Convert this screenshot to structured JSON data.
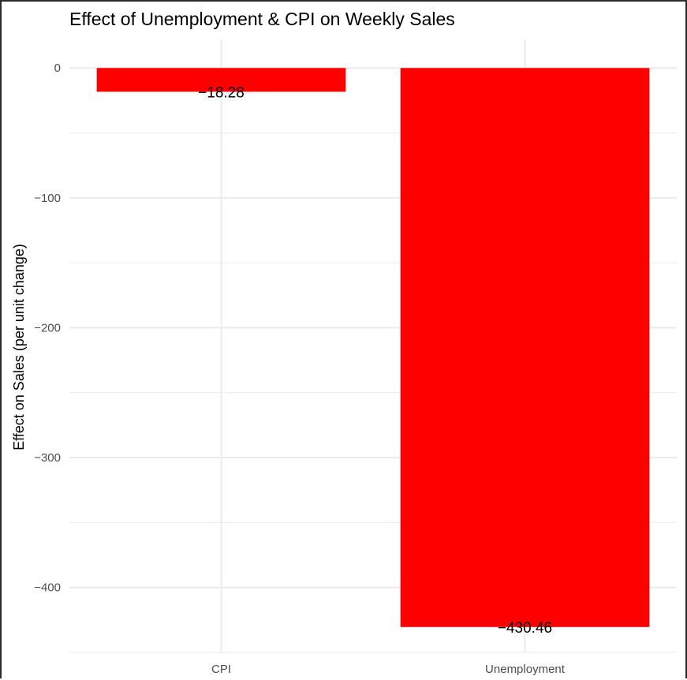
{
  "chart_data": {
    "type": "bar",
    "title": "Effect of Unemployment & CPI on Weekly Sales",
    "xlabel": "",
    "ylabel": "Effect on Sales (per unit change)",
    "categories": [
      "CPI",
      "Unemployment"
    ],
    "values": [
      -18.28,
      -430.46
    ],
    "value_labels": [
      "−18.28",
      "−430.46"
    ],
    "yticks": [
      0,
      -100,
      -200,
      -300,
      -400
    ],
    "ytick_labels": [
      "0",
      "−100",
      "−200",
      "−300",
      "−400"
    ],
    "ylim": [
      -450,
      22
    ],
    "grid": true,
    "legend": "none",
    "bar_color": "#ff0000",
    "grid_color": "#ebebeb"
  }
}
